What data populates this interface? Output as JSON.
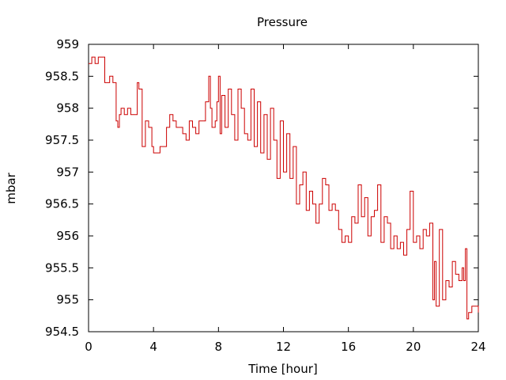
{
  "chart_data": {
    "type": "line",
    "title": "Pressure",
    "xlabel": "Time [hour]",
    "ylabel": "mbar",
    "xlim": [
      0,
      24
    ],
    "ylim": [
      954.5,
      959
    ],
    "x_ticks": [
      0,
      4,
      8,
      12,
      16,
      20,
      24
    ],
    "x_tick_labels": [
      "0",
      "4",
      "8",
      "12",
      "16",
      "20",
      "24"
    ],
    "y_ticks": [
      954.5,
      955,
      955.5,
      956,
      956.5,
      957,
      957.5,
      958,
      958.5,
      959
    ],
    "y_tick_labels": [
      "954.5",
      "955",
      "955.5",
      "956",
      "956.5",
      "957",
      "957.5",
      "958",
      "958.5",
      "959"
    ],
    "grid": false,
    "line_color": "#cc0000",
    "series": [
      {
        "x": [
          0,
          0.2,
          0.4,
          0.6,
          0.9,
          1.0,
          1.1,
          1.3,
          1.5,
          1.7,
          1.8,
          1.9,
          2.0,
          2.2,
          2.4,
          2.6,
          2.8,
          3.0,
          3.1,
          3.3,
          3.5,
          3.7,
          3.9,
          4.0,
          4.2,
          4.4,
          4.6,
          4.8,
          5.0,
          5.2,
          5.4,
          5.6,
          5.8,
          6.0,
          6.2,
          6.4,
          6.6,
          6.8,
          7.0,
          7.2,
          7.4,
          7.5,
          7.6,
          7.8,
          7.9,
          8.0,
          8.1,
          8.2,
          8.4,
          8.6,
          8.8,
          9.0,
          9.2,
          9.4,
          9.6,
          9.8,
          10.0,
          10.2,
          10.4,
          10.6,
          10.8,
          11.0,
          11.2,
          11.4,
          11.6,
          11.8,
          12.0,
          12.2,
          12.4,
          12.6,
          12.8,
          13.0,
          13.2,
          13.4,
          13.6,
          13.8,
          14.0,
          14.2,
          14.4,
          14.6,
          14.8,
          15.0,
          15.2,
          15.4,
          15.6,
          15.8,
          16.0,
          16.2,
          16.4,
          16.6,
          16.8,
          17.0,
          17.2,
          17.4,
          17.6,
          17.8,
          18.0,
          18.2,
          18.4,
          18.6,
          18.8,
          19.0,
          19.2,
          19.4,
          19.6,
          19.8,
          20.0,
          20.2,
          20.4,
          20.6,
          20.8,
          21.0,
          21.2,
          21.3,
          21.4,
          21.6,
          21.8,
          22.0,
          22.2,
          22.4,
          22.6,
          22.8,
          23.0,
          23.1,
          23.2,
          23.3,
          23.4,
          23.6,
          23.8,
          24.0
        ],
        "y": [
          958.7,
          958.8,
          958.7,
          958.8,
          958.8,
          958.4,
          958.4,
          958.5,
          958.4,
          957.8,
          957.7,
          957.9,
          958.0,
          957.9,
          958.0,
          957.9,
          957.9,
          958.4,
          958.3,
          957.4,
          957.8,
          957.7,
          957.4,
          957.3,
          957.3,
          957.4,
          957.4,
          957.7,
          957.9,
          957.8,
          957.7,
          957.7,
          957.6,
          957.5,
          957.8,
          957.7,
          957.6,
          957.8,
          957.8,
          958.1,
          958.5,
          958.0,
          957.7,
          957.8,
          958.1,
          958.5,
          957.6,
          958.2,
          957.7,
          958.3,
          957.9,
          957.5,
          958.3,
          958.0,
          957.6,
          957.5,
          958.3,
          957.4,
          958.1,
          957.3,
          957.9,
          957.2,
          958.0,
          957.5,
          956.9,
          957.8,
          957.0,
          957.6,
          956.9,
          957.4,
          956.5,
          956.8,
          957.0,
          956.4,
          956.7,
          956.5,
          956.2,
          956.5,
          956.9,
          956.8,
          956.4,
          956.5,
          956.4,
          956.1,
          955.9,
          956.0,
          955.9,
          956.3,
          956.2,
          956.8,
          956.3,
          956.6,
          956.0,
          956.3,
          956.4,
          956.8,
          955.9,
          956.3,
          956.2,
          955.8,
          956.0,
          955.8,
          955.9,
          955.7,
          956.1,
          956.7,
          955.9,
          956.0,
          955.8,
          956.1,
          956.0,
          956.2,
          955.0,
          955.6,
          954.9,
          956.1,
          955.0,
          955.3,
          955.2,
          955.6,
          955.4,
          955.3,
          955.5,
          955.3,
          955.8,
          954.7,
          954.8,
          954.9,
          954.9,
          954.8
        ]
      }
    ]
  }
}
